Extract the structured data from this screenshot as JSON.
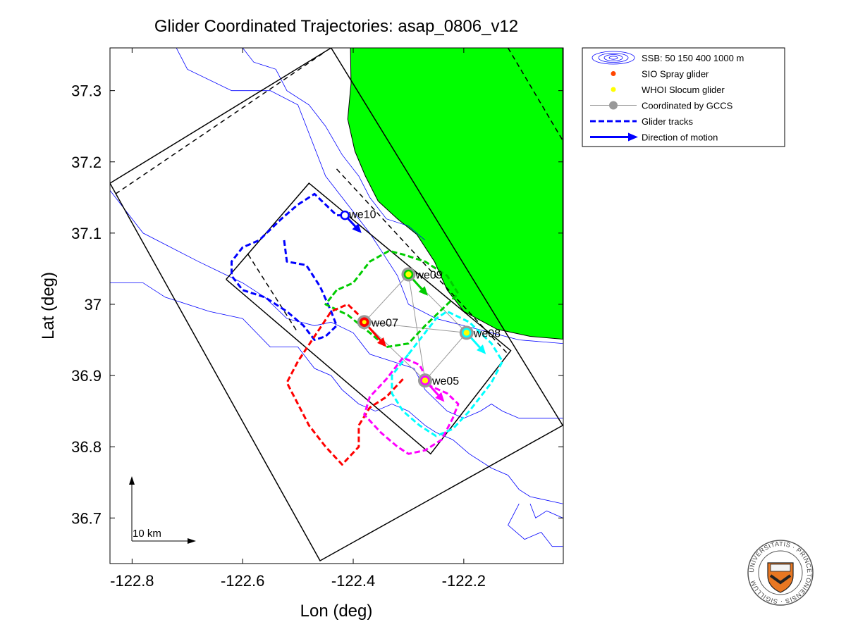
{
  "chart_data": {
    "type": "map",
    "title": "Glider Coordinated Trajectories: asap_0806_v12",
    "xlabel": "Lon (deg)",
    "ylabel": "Lat (deg)",
    "xlim": [
      -122.84,
      -122.02
    ],
    "ylim": [
      36.636,
      37.36
    ],
    "xticks": [
      {
        "v": -122.8,
        "t": "-122.8"
      },
      {
        "v": -122.6,
        "t": "-122.6"
      },
      {
        "v": -122.4,
        "t": "-122.4"
      },
      {
        "v": -122.2,
        "t": "-122.2"
      }
    ],
    "yticks": [
      {
        "v": 37.3,
        "t": "37.3"
      },
      {
        "v": 37.2,
        "t": "37.2"
      },
      {
        "v": 37.1,
        "t": "37.1"
      },
      {
        "v": 37.0,
        "t": "37"
      },
      {
        "v": 36.9,
        "t": "36.9"
      },
      {
        "v": 36.8,
        "t": "36.8"
      },
      {
        "v": 36.7,
        "t": "36.7"
      }
    ],
    "land_color": "#00ff00",
    "land": [
      [
        -122.021,
        37.36
      ],
      [
        -122.405,
        37.36
      ],
      [
        -122.404,
        37.31
      ],
      [
        -122.41,
        37.26
      ],
      [
        -122.397,
        37.215
      ],
      [
        -122.378,
        37.18
      ],
      [
        -122.355,
        37.145
      ],
      [
        -122.32,
        37.12
      ],
      [
        -122.285,
        37.098
      ],
      [
        -122.253,
        37.06
      ],
      [
        -122.23,
        37.02
      ],
      [
        -122.2,
        36.99
      ],
      [
        -122.14,
        36.965
      ],
      [
        -122.08,
        36.955
      ],
      [
        -122.021,
        36.951
      ]
    ],
    "bathymetry": [
      [
        [
          -122.84,
          37.16
        ],
        [
          -122.78,
          37.1
        ],
        [
          -122.68,
          37.06
        ],
        [
          -122.6,
          37.03
        ],
        [
          -122.56,
          37.01
        ],
        [
          -122.52,
          36.98
        ],
        [
          -122.47,
          36.97
        ],
        [
          -122.44,
          36.975
        ],
        [
          -122.4,
          36.96
        ],
        [
          -122.37,
          36.93
        ],
        [
          -122.33,
          36.92
        ],
        [
          -122.29,
          36.91
        ],
        [
          -122.27,
          36.88
        ],
        [
          -122.23,
          36.85
        ],
        [
          -122.2,
          36.84
        ],
        [
          -122.17,
          36.85
        ],
        [
          -122.15,
          36.86
        ],
        [
          -122.13,
          36.85
        ],
        [
          -122.1,
          36.84
        ],
        [
          -122.021,
          36.84
        ]
      ],
      [
        [
          -122.84,
          37.03
        ],
        [
          -122.78,
          37.03
        ],
        [
          -122.74,
          37.01
        ],
        [
          -122.66,
          36.99
        ],
        [
          -122.6,
          36.98
        ],
        [
          -122.55,
          36.94
        ],
        [
          -122.5,
          36.94
        ],
        [
          -122.47,
          36.91
        ],
        [
          -122.44,
          36.9
        ],
        [
          -122.42,
          36.88
        ],
        [
          -122.39,
          36.86
        ],
        [
          -122.36,
          36.85
        ],
        [
          -122.33,
          36.86
        ],
        [
          -122.3,
          36.85
        ],
        [
          -122.27,
          36.83
        ],
        [
          -122.25,
          36.82
        ],
        [
          -122.22,
          36.81
        ],
        [
          -122.19,
          36.79
        ],
        [
          -122.15,
          36.77
        ],
        [
          -122.12,
          36.76
        ],
        [
          -122.1,
          36.74
        ],
        [
          -122.08,
          36.73
        ],
        [
          -122.021,
          36.72
        ]
      ],
      [
        [
          -122.72,
          37.36
        ],
        [
          -122.7,
          37.33
        ],
        [
          -122.62,
          37.3
        ],
        [
          -122.55,
          37.3
        ],
        [
          -122.5,
          37.28
        ],
        [
          -122.47,
          37.22
        ],
        [
          -122.45,
          37.18
        ],
        [
          -122.43,
          37.16
        ],
        [
          -122.4,
          37.13
        ],
        [
          -122.37,
          37.1
        ],
        [
          -122.345,
          37.07
        ],
        [
          -122.32,
          37.04
        ],
        [
          -122.3,
          37.0
        ],
        [
          -122.25,
          36.98
        ],
        [
          -122.2,
          36.97
        ],
        [
          -122.15,
          36.96
        ],
        [
          -122.1,
          36.95
        ],
        [
          -122.021,
          36.945
        ]
      ],
      [
        [
          -122.6,
          37.36
        ],
        [
          -122.58,
          37.34
        ],
        [
          -122.54,
          37.33
        ],
        [
          -122.52,
          37.3
        ],
        [
          -122.48,
          37.28
        ],
        [
          -122.45,
          37.25
        ],
        [
          -122.42,
          37.21
        ],
        [
          -122.39,
          37.18
        ],
        [
          -122.37,
          37.15
        ],
        [
          -122.34,
          37.12
        ],
        [
          -122.3,
          37.11
        ],
        [
          -122.27,
          37.09
        ]
      ],
      [
        [
          -122.1,
          36.72
        ],
        [
          -122.12,
          36.69
        ],
        [
          -122.09,
          36.67
        ],
        [
          -122.06,
          36.68
        ],
        [
          -122.04,
          36.66
        ],
        [
          -122.021,
          36.66
        ]
      ],
      [
        [
          -122.021,
          36.7
        ],
        [
          -122.05,
          36.71
        ],
        [
          -122.07,
          36.7
        ],
        [
          -122.08,
          36.72
        ]
      ]
    ],
    "domains": [
      {
        "name": "outer-domain",
        "style": "solid",
        "points": [
          [
            -122.84,
            37.17
          ],
          [
            -122.44,
            37.36
          ],
          [
            -122.021,
            36.83
          ],
          [
            -122.46,
            36.64
          ],
          [
            -122.84,
            37.17
          ]
        ]
      },
      {
        "name": "outer-dashed",
        "style": "dashed",
        "points": [
          [
            -122.83,
            37.155
          ],
          [
            -122.45,
            37.355
          ]
        ]
      },
      {
        "name": "outer-dashed-east",
        "style": "dashed",
        "points": [
          [
            -122.12,
            37.36
          ],
          [
            -122.021,
            37.23
          ]
        ]
      },
      {
        "name": "inner-box",
        "style": "solid",
        "points": [
          [
            -122.63,
            37.035
          ],
          [
            -122.48,
            37.17
          ],
          [
            -122.115,
            36.935
          ],
          [
            -122.26,
            36.79
          ],
          [
            -122.63,
            37.035
          ]
        ]
      },
      {
        "name": "inner-dashed",
        "style": "dashed",
        "points": [
          [
            -122.43,
            37.19
          ],
          [
            -122.12,
            36.93
          ]
        ]
      },
      {
        "name": "inner-dashed-2",
        "style": "dashed",
        "points": [
          [
            -122.59,
            37.07
          ],
          [
            -122.5,
            36.96
          ]
        ]
      }
    ],
    "coordination_links": [
      [
        [
          -122.38,
          36.975
        ],
        [
          -122.3,
          37.042
        ]
      ],
      [
        [
          -122.38,
          36.975
        ],
        [
          -122.195,
          36.96
        ]
      ],
      [
        [
          -122.38,
          36.975
        ],
        [
          -122.27,
          36.893
        ]
      ],
      [
        [
          -122.3,
          37.042
        ],
        [
          -122.195,
          36.96
        ]
      ],
      [
        [
          -122.3,
          37.042
        ],
        [
          -122.27,
          36.893
        ]
      ],
      [
        [
          -122.195,
          36.96
        ],
        [
          -122.27,
          36.893
        ]
      ]
    ],
    "series": [
      {
        "name": "we10",
        "color": "#0000ff",
        "type": "WHOI Slocum glider",
        "track": [
          [
            -122.525,
            37.09
          ],
          [
            -122.52,
            37.06
          ],
          [
            -122.485,
            37.055
          ],
          [
            -122.46,
            37.025
          ],
          [
            -122.44,
            36.99
          ],
          [
            -122.43,
            36.97
          ],
          [
            -122.45,
            36.955
          ],
          [
            -122.47,
            36.95
          ],
          [
            -122.49,
            36.97
          ],
          [
            -122.52,
            36.99
          ],
          [
            -122.56,
            37.01
          ],
          [
            -122.6,
            37.02
          ],
          [
            -122.62,
            37.04
          ],
          [
            -122.62,
            37.06
          ],
          [
            -122.6,
            37.08
          ],
          [
            -122.57,
            37.09
          ],
          [
            -122.53,
            37.12
          ],
          [
            -122.5,
            37.14
          ],
          [
            -122.47,
            37.155
          ],
          [
            -122.45,
            37.14
          ],
          [
            -122.43,
            37.125
          ],
          [
            -122.415,
            37.125
          ]
        ],
        "position": [
          -122.415,
          37.125
        ],
        "arrow": [
          [
            -122.415,
            37.125
          ],
          [
            -122.385,
            37.1
          ]
        ],
        "label_offset": [
          6,
          4
        ]
      },
      {
        "name": "we09",
        "color": "#00cc00",
        "type": "WHOI Slocum glider",
        "track": [
          [
            -122.43,
            37.02
          ],
          [
            -122.45,
            37.0
          ],
          [
            -122.41,
            36.985
          ],
          [
            -122.37,
            36.96
          ],
          [
            -122.34,
            36.94
          ],
          [
            -122.3,
            36.945
          ],
          [
            -122.27,
            36.97
          ],
          [
            -122.23,
            37.0
          ],
          [
            -122.21,
            37.015
          ],
          [
            -122.23,
            37.04
          ],
          [
            -122.27,
            37.06
          ],
          [
            -122.31,
            37.07
          ],
          [
            -122.335,
            37.075
          ],
          [
            -122.37,
            37.06
          ],
          [
            -122.4,
            37.03
          ],
          [
            -122.43,
            37.02
          ],
          [
            -122.44,
            37.01
          ]
        ],
        "position": [
          -122.3,
          37.042
        ],
        "arrow": [
          [
            -122.3,
            37.042
          ],
          [
            -122.265,
            37.012
          ]
        ],
        "label_offset": [
          10,
          6
        ]
      },
      {
        "name": "we07",
        "color": "#ff0000",
        "type": "SIO Spray glider",
        "track": [
          [
            -122.31,
            36.895
          ],
          [
            -122.34,
            36.87
          ],
          [
            -122.37,
            36.855
          ],
          [
            -122.39,
            36.83
          ],
          [
            -122.39,
            36.8
          ],
          [
            -122.42,
            36.775
          ],
          [
            -122.45,
            36.8
          ],
          [
            -122.48,
            36.83
          ],
          [
            -122.5,
            36.86
          ],
          [
            -122.52,
            36.89
          ],
          [
            -122.5,
            36.92
          ],
          [
            -122.47,
            36.955
          ],
          [
            -122.44,
            36.99
          ],
          [
            -122.41,
            37.0
          ],
          [
            -122.39,
            36.985
          ],
          [
            -122.38,
            36.975
          ]
        ],
        "position": [
          -122.38,
          36.975
        ],
        "arrow": [
          [
            -122.38,
            36.975
          ],
          [
            -122.34,
            36.94
          ]
        ],
        "label_offset": [
          10,
          6
        ]
      },
      {
        "name": "we08",
        "color": "#00ffff",
        "type": "WHOI Slocum glider",
        "track": [
          [
            -122.3,
            36.93
          ],
          [
            -122.28,
            36.95
          ],
          [
            -122.25,
            36.98
          ],
          [
            -122.23,
            36.99
          ],
          [
            -122.19,
            36.975
          ],
          [
            -122.15,
            36.945
          ],
          [
            -122.13,
            36.92
          ],
          [
            -122.15,
            36.89
          ],
          [
            -122.19,
            36.85
          ],
          [
            -122.22,
            36.825
          ],
          [
            -122.25,
            36.815
          ],
          [
            -122.28,
            36.83
          ],
          [
            -122.31,
            36.85
          ],
          [
            -122.33,
            36.875
          ],
          [
            -122.33,
            36.9
          ],
          [
            -122.3,
            36.93
          ]
        ],
        "position": [
          -122.195,
          36.96
        ],
        "arrow": [
          [
            -122.195,
            36.96
          ],
          [
            -122.16,
            36.93
          ]
        ],
        "label_offset": [
          10,
          6
        ]
      },
      {
        "name": "we05",
        "color": "#ff00ff",
        "type": "WHOI Slocum glider",
        "track": [
          [
            -122.26,
            36.885
          ],
          [
            -122.28,
            36.915
          ],
          [
            -122.31,
            36.925
          ],
          [
            -122.34,
            36.895
          ],
          [
            -122.37,
            36.87
          ],
          [
            -122.38,
            36.845
          ],
          [
            -122.35,
            36.82
          ],
          [
            -122.32,
            36.8
          ],
          [
            -122.3,
            36.79
          ],
          [
            -122.27,
            36.795
          ],
          [
            -122.24,
            36.81
          ],
          [
            -122.22,
            36.84
          ],
          [
            -122.21,
            36.86
          ],
          [
            -122.23,
            36.875
          ],
          [
            -122.26,
            36.885
          ]
        ],
        "position": [
          -122.27,
          36.893
        ],
        "arrow": [
          [
            -122.27,
            36.893
          ],
          [
            -122.235,
            36.863
          ]
        ],
        "label_offset": [
          10,
          6
        ]
      }
    ],
    "scale_bar": "10 km",
    "legend": {
      "placement": "outside-top-right",
      "items": [
        {
          "label": "SSB: 50   150   400  1000 m",
          "kind": "bathy"
        },
        {
          "label": "SIO Spray glider",
          "kind": "dot",
          "color": "#ff4500"
        },
        {
          "label": "WHOI Slocum glider",
          "kind": "dot",
          "color": "#ffff00"
        },
        {
          "label": "Coordinated by GCCS",
          "kind": "coord"
        },
        {
          "label": "Glider tracks",
          "kind": "dashed"
        },
        {
          "label": "Direction of motion",
          "kind": "arrow"
        }
      ]
    },
    "seal_text": "UNIVERSITATIS · PRINCETONIENSIS · SIGILLUM"
  }
}
